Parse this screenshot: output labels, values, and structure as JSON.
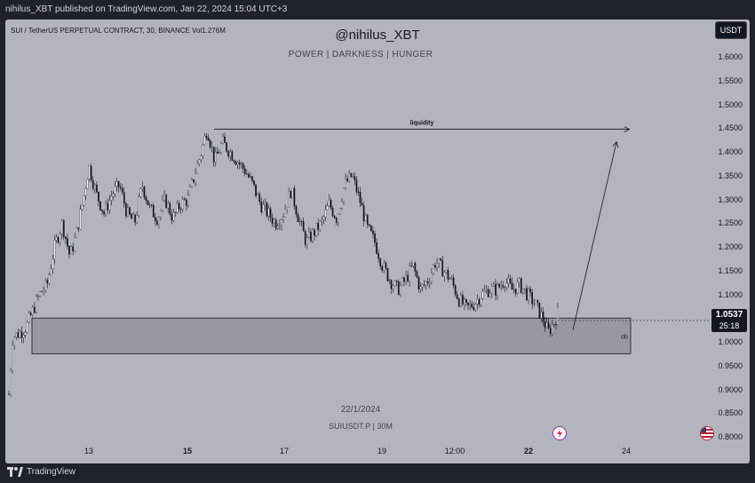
{
  "header": {
    "published_line": "nihilus_XBT published on TradingView.com, Jan 22, 2024 15:04 UTC+3"
  },
  "symbol_info": "SUI / TetherUS PERPETUAL CONTRACT, 30, BINANCE  Vol1.276M",
  "watermark": {
    "title": "@nihilus_XBT",
    "subtitle": "POWER | DARKNESS | HUNGER",
    "date": "22/1/2024",
    "symbol": "SUIUSDT.P | 30M"
  },
  "currency_button": "USDT",
  "price_tag": {
    "price": "1.0537",
    "countdown": "25:18"
  },
  "footer": {
    "brand": "TradingView"
  },
  "colors": {
    "chart_bg": "#b2b5be",
    "frame_bg": "#1e222d",
    "candles": "#131722",
    "zone_fill": "#8d9098"
  },
  "icons": [
    "lightning-icon",
    "flag-icon",
    "tradingview-logo-icon"
  ],
  "chart_data": {
    "type": "candlestick",
    "ylim": [
      0.78,
      1.65
    ],
    "yticks": [
      "1.6000",
      "1.5500",
      "1.5000",
      "1.4500",
      "1.4000",
      "1.3500",
      "1.3000",
      "1.2500",
      "1.2000",
      "1.1500",
      "1.1000",
      "1.0500",
      "1.0000",
      "0.9500",
      "0.9000",
      "0.8500",
      "0.8000"
    ],
    "xticks": [
      {
        "label": "13",
        "bold": false
      },
      {
        "label": "15",
        "bold": true
      },
      {
        "label": "17",
        "bold": false
      },
      {
        "label": "19",
        "bold": false
      },
      {
        "label": "12:00",
        "bold": false
      },
      {
        "label": "22",
        "bold": true
      },
      {
        "label": "24",
        "bold": false
      }
    ],
    "price_path": [
      [
        0,
        0.89
      ],
      [
        2,
        1.01
      ],
      [
        6,
        1.02
      ],
      [
        9,
        1.03
      ],
      [
        12,
        1.06
      ],
      [
        16,
        1.1
      ],
      [
        20,
        1.12
      ],
      [
        24,
        1.2
      ],
      [
        28,
        1.25
      ],
      [
        32,
        1.18
      ],
      [
        35,
        1.22
      ],
      [
        39,
        1.3
      ],
      [
        42,
        1.37
      ],
      [
        46,
        1.31
      ],
      [
        50,
        1.27
      ],
      [
        54,
        1.31
      ],
      [
        58,
        1.33
      ],
      [
        62,
        1.27
      ],
      [
        66,
        1.25
      ],
      [
        70,
        1.33
      ],
      [
        74,
        1.28
      ],
      [
        78,
        1.26
      ],
      [
        82,
        1.3
      ],
      [
        86,
        1.26
      ],
      [
        90,
        1.29
      ],
      [
        94,
        1.3
      ],
      [
        98,
        1.36
      ],
      [
        101,
        1.4
      ],
      [
        104,
        1.45
      ],
      [
        108,
        1.38
      ],
      [
        112,
        1.42
      ],
      [
        116,
        1.4
      ],
      [
        120,
        1.38
      ],
      [
        124,
        1.36
      ],
      [
        128,
        1.33
      ],
      [
        132,
        1.29
      ],
      [
        136,
        1.27
      ],
      [
        140,
        1.25
      ],
      [
        144,
        1.27
      ],
      [
        148,
        1.32
      ],
      [
        152,
        1.26
      ],
      [
        156,
        1.21
      ],
      [
        160,
        1.23
      ],
      [
        164,
        1.25
      ],
      [
        168,
        1.29
      ],
      [
        172,
        1.26
      ],
      [
        176,
        1.33
      ],
      [
        180,
        1.35
      ],
      [
        184,
        1.3
      ],
      [
        188,
        1.24
      ],
      [
        192,
        1.21
      ],
      [
        196,
        1.16
      ],
      [
        200,
        1.13
      ],
      [
        204,
        1.11
      ],
      [
        208,
        1.13
      ],
      [
        212,
        1.16
      ],
      [
        216,
        1.11
      ],
      [
        220,
        1.13
      ],
      [
        224,
        1.17
      ],
      [
        228,
        1.15
      ],
      [
        232,
        1.13
      ],
      [
        236,
        1.09
      ],
      [
        240,
        1.07
      ],
      [
        244,
        1.08
      ],
      [
        248,
        1.1
      ],
      [
        252,
        1.11
      ],
      [
        256,
        1.11
      ],
      [
        260,
        1.13
      ],
      [
        264,
        1.11
      ],
      [
        268,
        1.12
      ],
      [
        272,
        1.1
      ],
      [
        276,
        1.08
      ],
      [
        280,
        1.05
      ],
      [
        283,
        1.02
      ],
      [
        286,
        1.04
      ],
      [
        288,
        1.06
      ]
    ],
    "zone": {
      "label": "ob",
      "y_low": 0.975,
      "y_high": 1.05
    },
    "liquidity_line": {
      "label": "liquidity",
      "y": 1.455
    },
    "projection": {
      "from_y": 1.025,
      "to_y": 1.42
    }
  }
}
